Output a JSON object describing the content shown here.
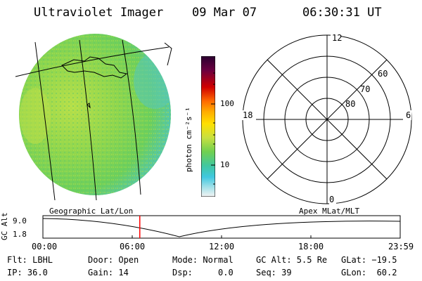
{
  "header": {
    "instrument": "Ultraviolet Imager",
    "date": "09 Mar 07",
    "time": "06:30:31 UT"
  },
  "colorbar": {
    "unit_label": "photon cm⁻²s⁻¹",
    "tick_labels": [
      "100",
      "10"
    ]
  },
  "polar_plot": {
    "mlt_labels": {
      "top": "12",
      "left": "18",
      "right": "6",
      "bottom": "0"
    },
    "lat_labels": [
      "60",
      "70",
      "80"
    ]
  },
  "timeline": {
    "left_title": "Geographic Lat/Lon",
    "right_title": "Apex MLat/MLT",
    "y_axis_label": "GC Alt",
    "y_ticks": [
      "9.0",
      "1.8"
    ],
    "x_ticks": [
      "00:00",
      "06:00",
      "12:00",
      "18:00",
      "23:59"
    ],
    "current_time_hours": 6.508
  },
  "status": {
    "flt": "Flt: LBHL",
    "door": "Door: Open",
    "mode": "Mode: Normal",
    "gc_alt": "GC Alt: 5.5 Re",
    "glat": "GLat: −19.5",
    "ip": "IP: 36.0",
    "gain": "Gain: 14",
    "dsp": "Dsp:     0.0",
    "seq": "Seq: 39",
    "glon": "GLon:  60.2"
  },
  "colors": {
    "marker": "#ff0000",
    "disk_base": "#7ed34a"
  }
}
